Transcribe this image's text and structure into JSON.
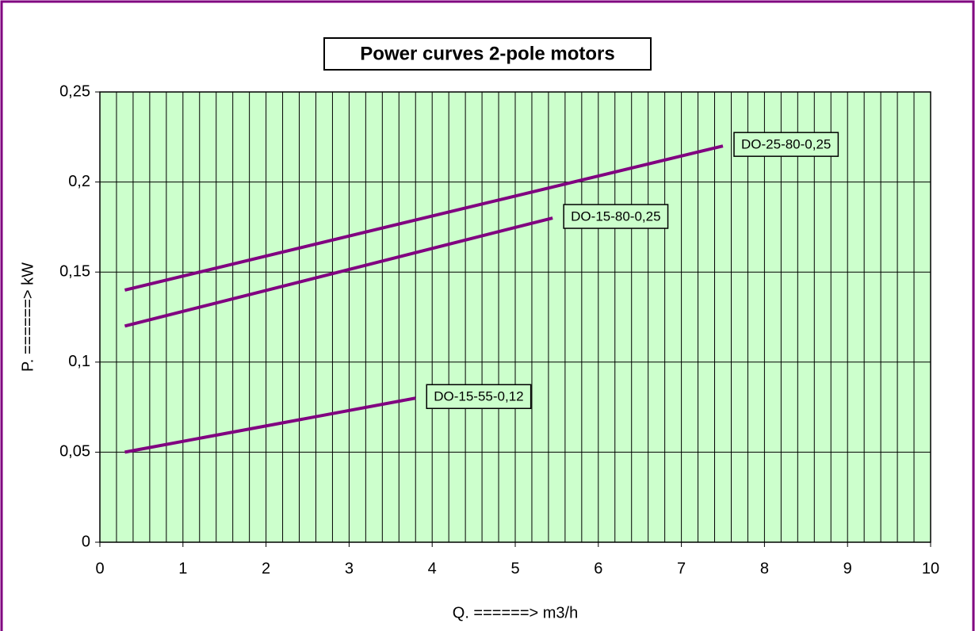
{
  "chart_data": {
    "type": "line",
    "title": "Power curves 2-pole motors",
    "x_label": "Q. ======> m3/h",
    "y_label": "P. ======> kW",
    "series": [
      {
        "name": "DO-25-80-0,25",
        "color": "#800080",
        "x": [
          0.3,
          7.5
        ],
        "values": [
          0.14,
          0.22
        ]
      },
      {
        "name": "DO-15-80-0,25",
        "color": "#800080",
        "x": [
          0.3,
          5.45
        ],
        "values": [
          0.12,
          0.18
        ]
      },
      {
        "name": "DO-15-55-0,12",
        "color": "#800080",
        "x": [
          0.3,
          3.8
        ],
        "values": [
          0.05,
          0.08
        ]
      }
    ],
    "xlim": [
      0,
      10
    ],
    "xticks": [
      0,
      1,
      2,
      3,
      4,
      5,
      6,
      7,
      8,
      9,
      10
    ],
    "ylim": [
      0,
      0.25
    ],
    "yticks": [
      0,
      {
        "value": 0.05,
        "label": "0,05"
      },
      {
        "value": 0.1,
        "label": "0,1"
      },
      {
        "value": 0.15,
        "label": "0,15"
      },
      {
        "value": 0.2,
        "label": "0,2"
      },
      {
        "value": 0.25,
        "label": "0,25"
      }
    ],
    "x_minor_grid": 0.2,
    "grid": true,
    "plot_background": "#ccffcc",
    "border_color": "#800080"
  }
}
